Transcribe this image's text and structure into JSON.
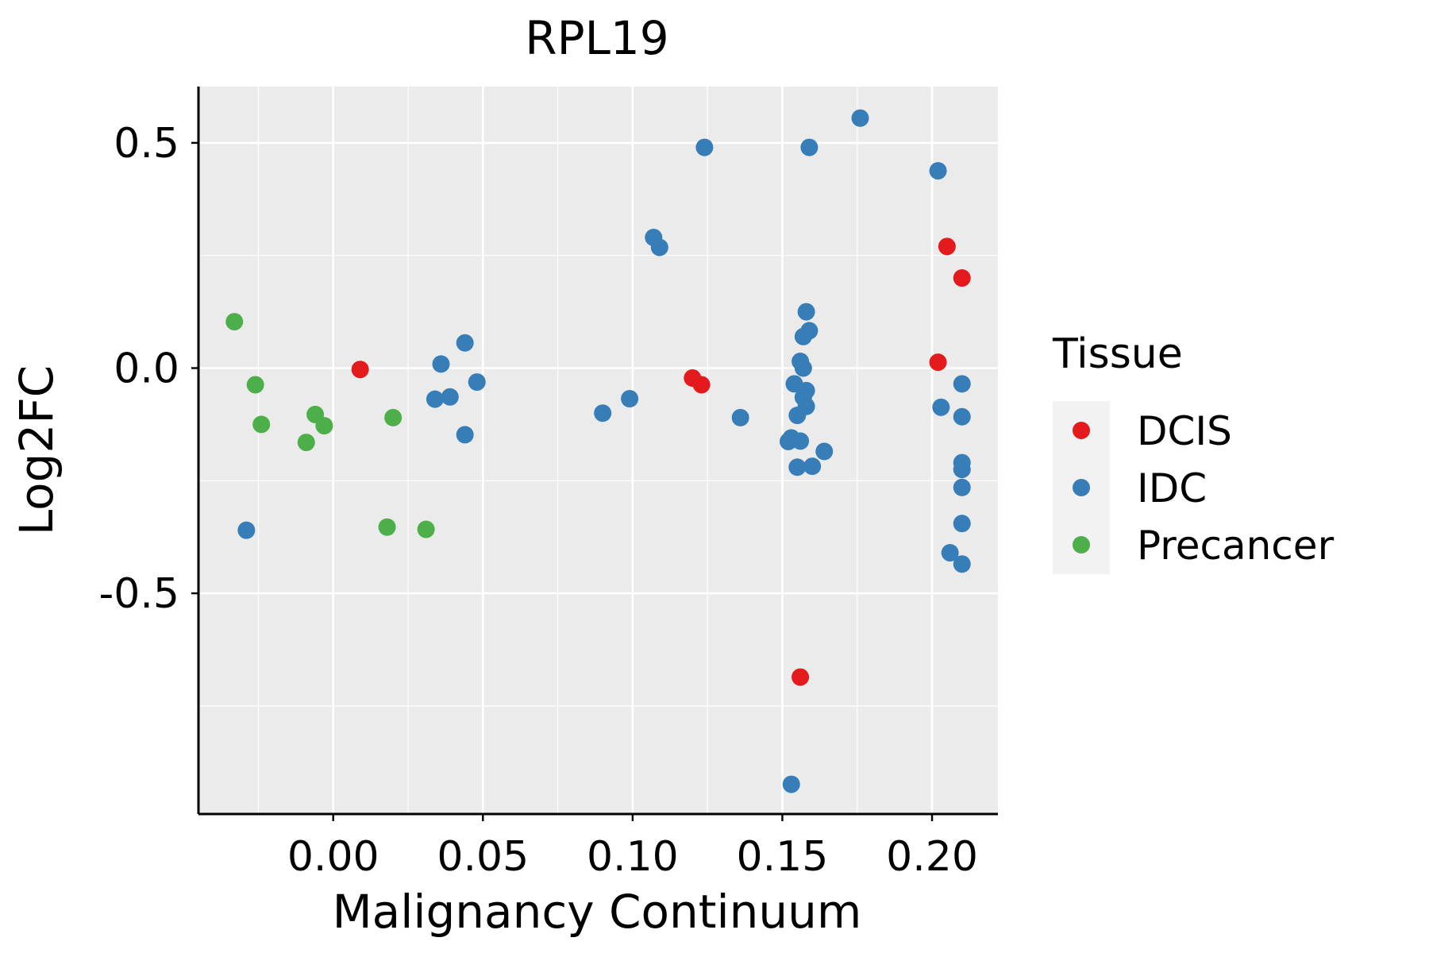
{
  "chart_data": {
    "type": "scatter",
    "title": "RPL19",
    "xlabel": "Malignancy Continuum",
    "ylabel": "Log2FC",
    "xlim": [
      -0.045,
      0.222
    ],
    "ylim": [
      -0.99,
      0.625
    ],
    "xticks": [
      0.0,
      0.05,
      0.1,
      0.15,
      0.2
    ],
    "xtick_labels": [
      "0.00",
      "0.05",
      "0.10",
      "0.15",
      "0.20"
    ],
    "yticks": [
      0.5,
      0.0,
      -0.5
    ],
    "ytick_labels": [
      "0.5",
      "0.0",
      "-0.5"
    ],
    "grid": true,
    "legend": {
      "title": "Tissue",
      "position": "right",
      "entries": [
        {
          "name": "DCIS",
          "color": "#E41A1C"
        },
        {
          "name": "IDC",
          "color": "#377EB8"
        },
        {
          "name": "Precancer",
          "color": "#4DAF4A"
        }
      ]
    },
    "series": [
      {
        "name": "DCIS",
        "color": "#E41A1C",
        "points": [
          {
            "x": 0.009,
            "y": -0.003
          },
          {
            "x": 0.12,
            "y": -0.022
          },
          {
            "x": 0.123,
            "y": -0.037
          },
          {
            "x": 0.156,
            "y": -0.686
          },
          {
            "x": 0.202,
            "y": 0.013
          },
          {
            "x": 0.205,
            "y": 0.27
          },
          {
            "x": 0.21,
            "y": 0.2
          }
        ]
      },
      {
        "name": "IDC",
        "color": "#377EB8",
        "points": [
          {
            "x": -0.029,
            "y": -0.36
          },
          {
            "x": 0.034,
            "y": -0.069
          },
          {
            "x": 0.036,
            "y": 0.009
          },
          {
            "x": 0.039,
            "y": -0.064
          },
          {
            "x": 0.044,
            "y": 0.056
          },
          {
            "x": 0.044,
            "y": -0.148
          },
          {
            "x": 0.048,
            "y": -0.031
          },
          {
            "x": 0.09,
            "y": -0.1
          },
          {
            "x": 0.099,
            "y": -0.068
          },
          {
            "x": 0.107,
            "y": 0.29
          },
          {
            "x": 0.109,
            "y": 0.268
          },
          {
            "x": 0.124,
            "y": 0.49
          },
          {
            "x": 0.136,
            "y": -0.11
          },
          {
            "x": 0.152,
            "y": -0.163
          },
          {
            "x": 0.153,
            "y": -0.155
          },
          {
            "x": 0.153,
            "y": -0.924
          },
          {
            "x": 0.154,
            "y": -0.035
          },
          {
            "x": 0.155,
            "y": -0.22
          },
          {
            "x": 0.155,
            "y": -0.105
          },
          {
            "x": 0.156,
            "y": 0.015
          },
          {
            "x": 0.156,
            "y": -0.162
          },
          {
            "x": 0.157,
            "y": 0.07
          },
          {
            "x": 0.157,
            "y": 0.0
          },
          {
            "x": 0.157,
            "y": -0.065
          },
          {
            "x": 0.158,
            "y": 0.125
          },
          {
            "x": 0.158,
            "y": -0.05
          },
          {
            "x": 0.158,
            "y": -0.085
          },
          {
            "x": 0.159,
            "y": 0.083
          },
          {
            "x": 0.159,
            "y": 0.49
          },
          {
            "x": 0.16,
            "y": -0.218
          },
          {
            "x": 0.164,
            "y": -0.185
          },
          {
            "x": 0.176,
            "y": 0.555
          },
          {
            "x": 0.202,
            "y": 0.438
          },
          {
            "x": 0.203,
            "y": -0.087
          },
          {
            "x": 0.206,
            "y": -0.41
          },
          {
            "x": 0.21,
            "y": -0.035
          },
          {
            "x": 0.21,
            "y": -0.108
          },
          {
            "x": 0.21,
            "y": -0.21
          },
          {
            "x": 0.21,
            "y": -0.225
          },
          {
            "x": 0.21,
            "y": -0.265
          },
          {
            "x": 0.21,
            "y": -0.345
          },
          {
            "x": 0.21,
            "y": -0.435
          }
        ]
      },
      {
        "name": "Precancer",
        "color": "#4DAF4A",
        "points": [
          {
            "x": -0.033,
            "y": 0.103
          },
          {
            "x": -0.026,
            "y": -0.037
          },
          {
            "x": -0.024,
            "y": -0.125
          },
          {
            "x": -0.009,
            "y": -0.165
          },
          {
            "x": -0.006,
            "y": -0.103
          },
          {
            "x": -0.003,
            "y": -0.128
          },
          {
            "x": 0.018,
            "y": -0.353
          },
          {
            "x": 0.02,
            "y": -0.11
          },
          {
            "x": 0.031,
            "y": -0.358
          }
        ]
      }
    ]
  }
}
